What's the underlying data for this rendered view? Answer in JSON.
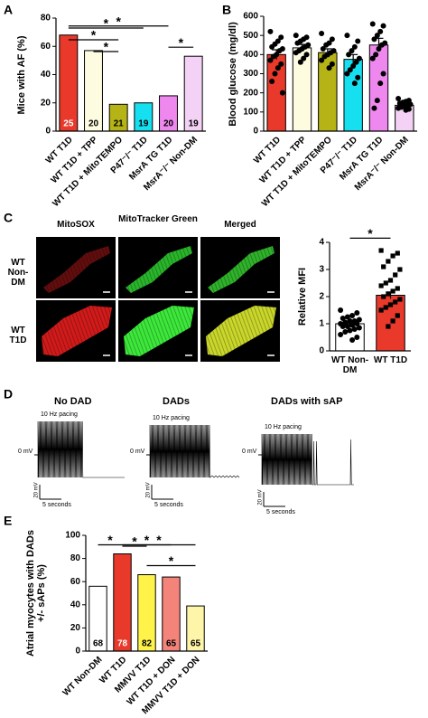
{
  "panel_labels": [
    "A",
    "B",
    "C",
    "D",
    "E"
  ],
  "chart_data": [
    {
      "type": "bar",
      "y_label": "Mice with AF (%)",
      "categories": [
        "WT T1D",
        "WT T1D + TPP",
        "WT T1D + MitoTEMPO",
        "P47⁻/⁻ T1D",
        "MsrA TG T1D",
        "MsrA⁻/⁻ Non-DM"
      ],
      "values": [
        68,
        57,
        19,
        20,
        25,
        53
      ],
      "colors": [
        "#e8392a",
        "#fdfbe0",
        "#b5b315",
        "#16e0f0",
        "#ee88ee",
        "#f3d2f5"
      ],
      "n": [
        25,
        20,
        21,
        19,
        20,
        19
      ],
      "ylim": [
        0,
        80
      ],
      "yticks": [
        0,
        20,
        40,
        60,
        80
      ],
      "comparisons": [
        {
          "pair": [
            0,
            4
          ],
          "label": "*"
        },
        {
          "pair": [
            0,
            3
          ],
          "label": "*"
        },
        {
          "pair": [
            0,
            2
          ],
          "label": "*"
        },
        {
          "pair": [
            1,
            2
          ],
          "label": "*"
        },
        {
          "pair": [
            4,
            5
          ],
          "label": "*"
        }
      ]
    },
    {
      "type": "bar",
      "y_label": "Blood glucose (mg/dl)",
      "categories": [
        "WT T1D",
        "WT T1D + TPP",
        "WT T1D + MitoTEMPO",
        "P47⁻/⁻ T1D",
        "MsrA TG T1D",
        "MsrA⁻/⁻ Non-DM"
      ],
      "values": [
        400,
        435,
        410,
        375,
        450,
        135
      ],
      "errors": [
        25,
        18,
        20,
        25,
        35,
        6
      ],
      "colors": [
        "#e8392a",
        "#fdfbe0",
        "#b5b315",
        "#16e0f0",
        "#ee88ee",
        "#f3d2f5"
      ],
      "points": [
        [
          520,
          490,
          470,
          455,
          440,
          430,
          420,
          400,
          390,
          370,
          350,
          330,
          300,
          260,
          200
        ],
        [
          500,
          490,
          480,
          470,
          460,
          450,
          440,
          430,
          420,
          410,
          400,
          380,
          360
        ],
        [
          510,
          480,
          460,
          450,
          430,
          420,
          410,
          400,
          390,
          370,
          350,
          330
        ],
        [
          500,
          470,
          440,
          420,
          400,
          380,
          360,
          340,
          320,
          300,
          280,
          250
        ],
        [
          560,
          550,
          520,
          500,
          480,
          460,
          450,
          430,
          400,
          380,
          300,
          250,
          160,
          120
        ],
        [
          170,
          160,
          155,
          150,
          145,
          140,
          135,
          130,
          125,
          120,
          115,
          110
        ]
      ],
      "markers": [
        "circle",
        "circle",
        "circle",
        "circle",
        "circle",
        "circle"
      ],
      "ylim": [
        0,
        600
      ],
      "yticks": [
        0,
        100,
        200,
        300,
        400,
        500,
        600
      ]
    },
    {
      "type": "bar",
      "y_label": "Relative MFI",
      "categories": [
        "WT Non-DM",
        "WT T1D"
      ],
      "values": [
        1.0,
        2.05
      ],
      "errors": [
        0.05,
        0.12
      ],
      "colors": [
        "#ffffff",
        "#e8392a"
      ],
      "points": [
        [
          1.5,
          1.4,
          1.3,
          1.25,
          1.2,
          1.15,
          1.1,
          1.1,
          1.05,
          1.0,
          1.0,
          0.95,
          0.9,
          0.9,
          0.85,
          0.8,
          0.75,
          0.7,
          0.6,
          0.5,
          0.4
        ],
        [
          3.7,
          3.6,
          3.5,
          3.3,
          3.1,
          3.0,
          2.8,
          2.6,
          2.5,
          2.4,
          2.3,
          2.2,
          2.1,
          2.0,
          1.9,
          1.8,
          1.7,
          1.6,
          1.5,
          1.3,
          1.1,
          0.9
        ]
      ],
      "markers": [
        "circle",
        "square"
      ],
      "ylim": [
        0,
        4
      ],
      "yticks": [
        0,
        1,
        2,
        3,
        4
      ],
      "comparisons": [
        {
          "pair": [
            0,
            1
          ],
          "label": "*"
        }
      ]
    },
    {
      "type": "bar",
      "y_label": "Atrial myocytes with DADs +/- sAPs (%)",
      "categories": [
        "WT Non-DM",
        "WT T1D",
        "MMVV T1D",
        "WT T1D + DON",
        "MMVV T1D + DON"
      ],
      "values": [
        56,
        84,
        66,
        64,
        39
      ],
      "colors": [
        "#ffffff",
        "#e8392a",
        "#fff34a",
        "#f4837a",
        "#fdf6a8"
      ],
      "n": [
        68,
        78,
        82,
        65,
        65
      ],
      "ylim": [
        0,
        100
      ],
      "yticks": [
        0,
        20,
        40,
        60,
        80,
        100
      ],
      "comparisons": [
        {
          "pair": [
            1,
            4
          ],
          "label": "*"
        },
        {
          "pair": [
            1,
            3
          ],
          "label": "*"
        },
        {
          "pair": [
            0,
            1
          ],
          "label": "*"
        },
        {
          "pair": [
            1,
            2
          ],
          "label": "*"
        },
        {
          "pair": [
            2,
            4
          ],
          "label": "*"
        }
      ]
    }
  ],
  "images": {
    "columns": [
      "MitoSOX",
      "MitoTracker Green",
      "Merged"
    ],
    "rows": [
      "WT Non-DM",
      "WT T1D"
    ]
  },
  "traces": [
    {
      "title": "No DAD",
      "pacing": "10 Hz pacing",
      "zero": "0 mV",
      "scale_v": "20 mV",
      "scale_t": "5 seconds"
    },
    {
      "title": "DADs",
      "pacing": "10 Hz pacing",
      "zero": "0 mV",
      "scale_v": "20 mV",
      "scale_t": "5 seconds"
    },
    {
      "title": "DADs with sAP",
      "pacing": "10 Hz pacing",
      "zero": "0 mV",
      "scale_v": "20 mV",
      "scale_t": "5 seconds"
    }
  ]
}
